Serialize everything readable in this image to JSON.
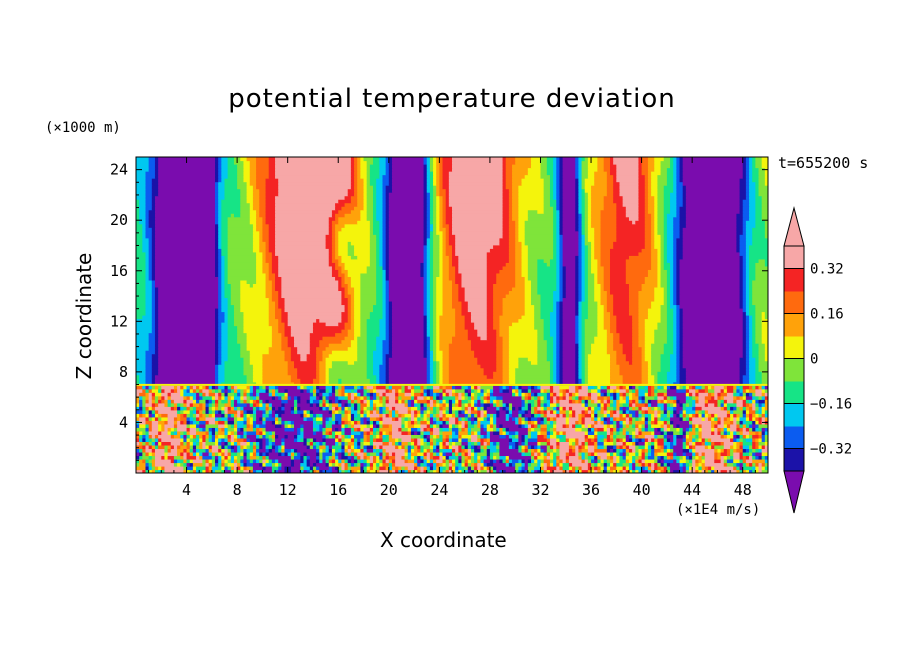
{
  "chart_data": {
    "type": "heatmap",
    "title": "potential temperature deviation",
    "xlabel": "X coordinate",
    "ylabel": "Z coordinate",
    "x_units": "(×1E4 m/s)",
    "z_units": "(×1000 m)",
    "time_label": "t=655200 s",
    "xlim": [
      0,
      50
    ],
    "ylim": [
      0,
      25
    ],
    "x_ticks": [
      4,
      8,
      12,
      16,
      20,
      24,
      28,
      32,
      36,
      40,
      44,
      48
    ],
    "y_ticks": [
      4,
      8,
      12,
      16,
      20,
      24
    ],
    "colorbar": {
      "levels": [
        -0.4,
        -0.32,
        -0.24,
        -0.16,
        -0.08,
        0,
        0.08,
        0.16,
        0.24,
        0.32,
        0.4
      ],
      "tick_values": [
        -0.32,
        -0.16,
        0,
        0.16,
        0.32
      ],
      "tick_labels": [
        "−0.32",
        "−0.16",
        "0",
        "0.16",
        "0.32"
      ],
      "colors": [
        "#7a0cae",
        "#1b12a8",
        "#0b5cf0",
        "#00c8f0",
        "#16e486",
        "#7fe43a",
        "#f4f40c",
        "#ffa20a",
        "#ff6a0e",
        "#f42424",
        "#f7a7a7"
      ]
    }
  }
}
